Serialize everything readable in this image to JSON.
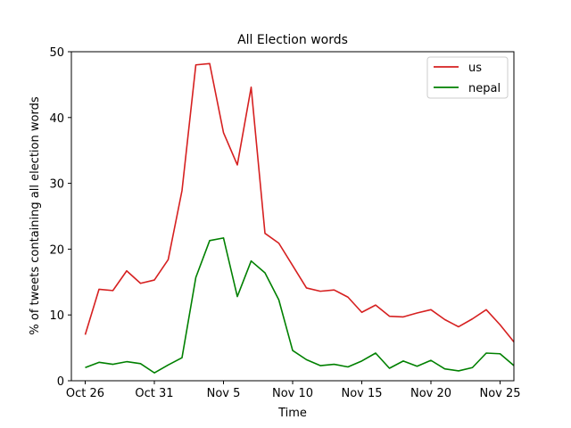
{
  "chart_data": {
    "type": "line",
    "title": "All Election words",
    "xlabel": "Time",
    "ylabel": "% of tweets containing all election words",
    "xlim": [
      -1,
      31
    ],
    "ylim": [
      0,
      50
    ],
    "x_ticks": [
      {
        "index": 0,
        "label": "Oct 26"
      },
      {
        "index": 5,
        "label": "Oct 31"
      },
      {
        "index": 10,
        "label": "Nov 5"
      },
      {
        "index": 15,
        "label": "Nov 10"
      },
      {
        "index": 20,
        "label": "Nov 15"
      },
      {
        "index": 25,
        "label": "Nov 20"
      },
      {
        "index": 30,
        "label": "Nov 25"
      }
    ],
    "y_ticks": [
      0,
      10,
      20,
      30,
      40,
      50
    ],
    "dates": [
      "Oct 26",
      "Oct 27",
      "Oct 28",
      "Oct 29",
      "Oct 30",
      "Oct 31",
      "Nov 1",
      "Nov 2",
      "Nov 3",
      "Nov 4",
      "Nov 5",
      "Nov 6",
      "Nov 7",
      "Nov 8",
      "Nov 9",
      "Nov 10",
      "Nov 11",
      "Nov 12",
      "Nov 13",
      "Nov 14",
      "Nov 15",
      "Nov 16",
      "Nov 17",
      "Nov 18",
      "Nov 19",
      "Nov 20",
      "Nov 21",
      "Nov 22",
      "Nov 23",
      "Nov 24",
      "Nov 25",
      "Nov 26"
    ],
    "series": [
      {
        "name": "us",
        "color": "#d62020",
        "values": [
          7.0,
          13.9,
          13.7,
          16.7,
          14.8,
          15.3,
          18.4,
          28.9,
          48.0,
          48.2,
          37.7,
          32.8,
          44.6,
          22.4,
          20.9,
          17.5,
          14.1,
          13.6,
          13.8,
          12.7,
          10.4,
          11.5,
          9.8,
          9.7,
          10.3,
          10.8,
          9.3,
          8.2,
          9.4,
          10.8,
          8.5,
          5.9
        ]
      },
      {
        "name": "nepal",
        "color": "#008000",
        "values": [
          2.0,
          2.8,
          2.5,
          2.9,
          2.6,
          1.2,
          2.4,
          3.5,
          15.7,
          21.3,
          21.7,
          12.8,
          18.2,
          16.4,
          12.3,
          4.6,
          3.2,
          2.3,
          2.5,
          2.1,
          3.0,
          4.2,
          1.9,
          3.0,
          2.2,
          3.1,
          1.8,
          1.5,
          2.0,
          4.2,
          4.1,
          2.3
        ]
      }
    ],
    "grid": false,
    "legend": "top-right"
  }
}
